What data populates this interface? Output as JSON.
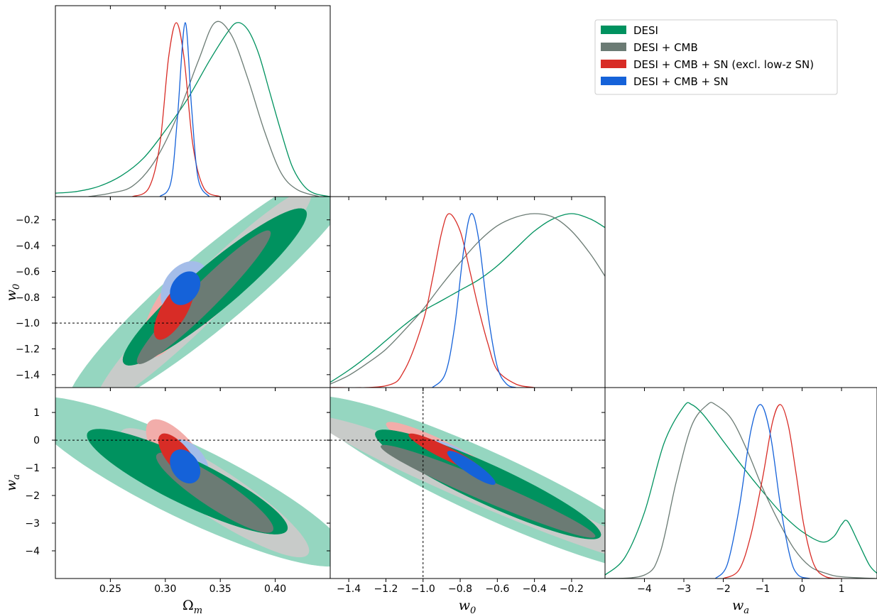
{
  "chart_data": {
    "type": "triangle-corner-plot",
    "parameters": [
      {
        "key": "om",
        "label": "Ω",
        "sub": "m",
        "range": [
          0.2,
          0.45
        ],
        "ticks": [
          0.25,
          0.3,
          0.35,
          0.4
        ],
        "tick_labels": [
          "0.25",
          "0.30",
          "0.35",
          "0.40"
        ]
      },
      {
        "key": "w0",
        "label": "w",
        "sub": "0",
        "range": [
          -1.5,
          -0.02
        ],
        "ticks": [
          -1.4,
          -1.2,
          -1.0,
          -0.8,
          -0.6,
          -0.4,
          -0.2
        ],
        "tick_labels": [
          "−1.4",
          "−1.2",
          "−1.0",
          "−0.8",
          "−0.6",
          "−0.4",
          "−0.2"
        ]
      },
      {
        "key": "wa",
        "label": "w",
        "sub": "a",
        "range": [
          -5.0,
          1.9
        ],
        "ticks": [
          -4,
          -3,
          -2,
          -1,
          0,
          1
        ],
        "tick_labels": [
          "−4",
          "−3",
          "−2",
          "−1",
          "0",
          "1"
        ]
      }
    ],
    "reference_lines": {
      "w0": -1.0,
      "wa": 0.0
    },
    "legend": {
      "placement": "top-right"
    },
    "series": [
      {
        "name": "DESI",
        "color_dark": "#00925f",
        "color_light": "#95d6c0",
        "mean": {
          "om": 0.365,
          "w0": -0.2,
          "wa": -2.8
        },
        "pdf1d": {
          "om": [
            [
              0.2,
              0.02
            ],
            [
              0.22,
              0.03
            ],
            [
              0.24,
              0.06
            ],
            [
              0.26,
              0.12
            ],
            [
              0.28,
              0.22
            ],
            [
              0.3,
              0.38
            ],
            [
              0.32,
              0.56
            ],
            [
              0.34,
              0.78
            ],
            [
              0.355,
              0.93
            ],
            [
              0.365,
              1.0
            ],
            [
              0.375,
              0.96
            ],
            [
              0.385,
              0.82
            ],
            [
              0.395,
              0.6
            ],
            [
              0.405,
              0.38
            ],
            [
              0.415,
              0.18
            ],
            [
              0.425,
              0.07
            ],
            [
              0.435,
              0.02
            ],
            [
              0.45,
              0.0
            ]
          ],
          "w0": [
            [
              -1.5,
              0.03
            ],
            [
              -1.4,
              0.1
            ],
            [
              -1.3,
              0.18
            ],
            [
              -1.2,
              0.27
            ],
            [
              -1.1,
              0.36
            ],
            [
              -1.0,
              0.44
            ],
            [
              -0.9,
              0.5
            ],
            [
              -0.8,
              0.56
            ],
            [
              -0.7,
              0.62
            ],
            [
              -0.6,
              0.7
            ],
            [
              -0.5,
              0.8
            ],
            [
              -0.4,
              0.9
            ],
            [
              -0.3,
              0.97
            ],
            [
              -0.2,
              1.0
            ],
            [
              -0.1,
              0.97
            ],
            [
              -0.02,
              0.92
            ]
          ],
          "wa": [
            [
              -5.0,
              0.02
            ],
            [
              -4.5,
              0.12
            ],
            [
              -4.0,
              0.38
            ],
            [
              -3.5,
              0.78
            ],
            [
              -3.0,
              0.99
            ],
            [
              -2.8,
              1.0
            ],
            [
              -2.5,
              0.94
            ],
            [
              -2.0,
              0.79
            ],
            [
              -1.5,
              0.64
            ],
            [
              -1.0,
              0.5
            ],
            [
              -0.5,
              0.37
            ],
            [
              0.0,
              0.27
            ],
            [
              0.5,
              0.21
            ],
            [
              0.8,
              0.24
            ],
            [
              1.0,
              0.31
            ],
            [
              1.15,
              0.33
            ],
            [
              1.4,
              0.22
            ],
            [
              1.7,
              0.08
            ],
            [
              1.9,
              0.03
            ]
          ]
        }
      },
      {
        "name": "DESI + CMB",
        "color_dark": "#6b7b74",
        "color_light": "#c8cbc9",
        "mean": {
          "om": 0.345,
          "w0": -0.35,
          "wa": -2.2
        },
        "pdf1d": {
          "om": [
            [
              0.23,
              0.0
            ],
            [
              0.25,
              0.02
            ],
            [
              0.27,
              0.06
            ],
            [
              0.29,
              0.2
            ],
            [
              0.31,
              0.45
            ],
            [
              0.33,
              0.78
            ],
            [
              0.345,
              1.0
            ],
            [
              0.36,
              0.93
            ],
            [
              0.375,
              0.68
            ],
            [
              0.39,
              0.38
            ],
            [
              0.405,
              0.14
            ],
            [
              0.42,
              0.04
            ],
            [
              0.44,
              0.0
            ]
          ],
          "w0": [
            [
              -1.5,
              0.02
            ],
            [
              -1.4,
              0.07
            ],
            [
              -1.3,
              0.14
            ],
            [
              -1.2,
              0.22
            ],
            [
              -1.1,
              0.33
            ],
            [
              -1.0,
              0.45
            ],
            [
              -0.9,
              0.59
            ],
            [
              -0.8,
              0.72
            ],
            [
              -0.7,
              0.84
            ],
            [
              -0.6,
              0.93
            ],
            [
              -0.5,
              0.98
            ],
            [
              -0.4,
              1.0
            ],
            [
              -0.3,
              0.98
            ],
            [
              -0.2,
              0.9
            ],
            [
              -0.1,
              0.77
            ],
            [
              -0.02,
              0.64
            ]
          ],
          "wa": [
            [
              -5.0,
              0.0
            ],
            [
              -4.0,
              0.02
            ],
            [
              -3.6,
              0.15
            ],
            [
              -3.2,
              0.55
            ],
            [
              -2.8,
              0.88
            ],
            [
              -2.4,
              1.0
            ],
            [
              -2.2,
              1.0
            ],
            [
              -1.8,
              0.92
            ],
            [
              -1.4,
              0.74
            ],
            [
              -1.0,
              0.52
            ],
            [
              -0.6,
              0.33
            ],
            [
              -0.2,
              0.17
            ],
            [
              0.2,
              0.07
            ],
            [
              0.6,
              0.03
            ],
            [
              1.0,
              0.01
            ],
            [
              1.9,
              0.0
            ]
          ]
        }
      },
      {
        "name": "DESI + CMB + SN (excl. low-z SN)",
        "color_dark": "#d82c26",
        "color_light": "#f2adaa",
        "mean": {
          "om": 0.31,
          "w0": -0.86,
          "wa": -0.55
        },
        "pdf1d": {
          "om": [
            [
              0.27,
              0.0
            ],
            [
              0.285,
              0.05
            ],
            [
              0.295,
              0.3
            ],
            [
              0.303,
              0.8
            ],
            [
              0.31,
              1.0
            ],
            [
              0.317,
              0.8
            ],
            [
              0.325,
              0.3
            ],
            [
              0.335,
              0.05
            ],
            [
              0.35,
              0.0
            ]
          ],
          "w0": [
            [
              -1.5,
              0.0
            ],
            [
              -1.2,
              0.01
            ],
            [
              -1.1,
              0.1
            ],
            [
              -1.0,
              0.38
            ],
            [
              -0.95,
              0.62
            ],
            [
              -0.9,
              0.89
            ],
            [
              -0.86,
              1.0
            ],
            [
              -0.8,
              0.9
            ],
            [
              -0.75,
              0.68
            ],
            [
              -0.7,
              0.45
            ],
            [
              -0.65,
              0.25
            ],
            [
              -0.6,
              0.1
            ],
            [
              -0.5,
              0.02
            ],
            [
              -0.4,
              0.0
            ]
          ],
          "wa": [
            [
              -2.0,
              0.0
            ],
            [
              -1.6,
              0.05
            ],
            [
              -1.3,
              0.25
            ],
            [
              -1.0,
              0.58
            ],
            [
              -0.75,
              0.9
            ],
            [
              -0.55,
              1.0
            ],
            [
              -0.35,
              0.88
            ],
            [
              -0.15,
              0.6
            ],
            [
              0.05,
              0.3
            ],
            [
              0.3,
              0.08
            ],
            [
              0.6,
              0.01
            ],
            [
              1.0,
              0.0
            ]
          ]
        }
      },
      {
        "name": "DESI + CMB + SN",
        "color_dark": "#1562d9",
        "color_light": "#a4bde9",
        "mean": {
          "om": 0.318,
          "w0": -0.73,
          "wa": -1.0
        },
        "pdf1d": {
          "om": [
            [
              0.295,
              0.0
            ],
            [
              0.305,
              0.08
            ],
            [
              0.311,
              0.45
            ],
            [
              0.318,
              1.0
            ],
            [
              0.324,
              0.5
            ],
            [
              0.33,
              0.1
            ],
            [
              0.34,
              0.0
            ]
          ],
          "w0": [
            [
              -0.95,
              0.0
            ],
            [
              -0.88,
              0.08
            ],
            [
              -0.83,
              0.35
            ],
            [
              -0.78,
              0.8
            ],
            [
              -0.74,
              1.0
            ],
            [
              -0.7,
              0.85
            ],
            [
              -0.65,
              0.42
            ],
            [
              -0.6,
              0.12
            ],
            [
              -0.55,
              0.02
            ],
            [
              -0.5,
              0.0
            ]
          ],
          "wa": [
            [
              -2.2,
              0.0
            ],
            [
              -1.9,
              0.08
            ],
            [
              -1.6,
              0.4
            ],
            [
              -1.3,
              0.85
            ],
            [
              -1.05,
              1.0
            ],
            [
              -0.8,
              0.82
            ],
            [
              -0.55,
              0.42
            ],
            [
              -0.3,
              0.12
            ],
            [
              -0.1,
              0.02
            ],
            [
              0.2,
              0.0
            ]
          ]
        }
      }
    ]
  }
}
